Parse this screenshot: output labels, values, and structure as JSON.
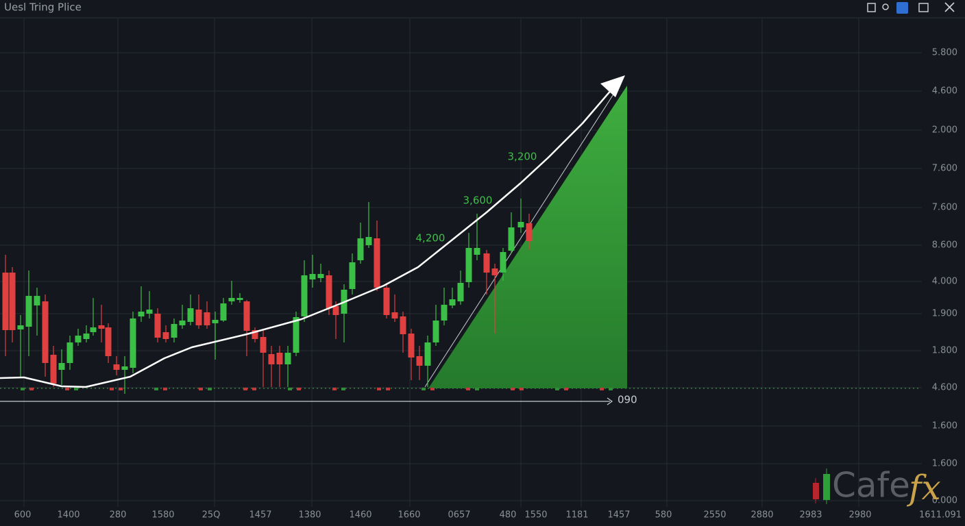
{
  "window": {
    "title": "Uesl Tring Plice"
  },
  "y_labels": [
    "5.800",
    "4.600",
    "2.000",
    "7.600",
    "7.600",
    "8.600",
    "4.000",
    "1.900",
    "1.800",
    "4.600",
    "1.600",
    "1.600",
    "0.000"
  ],
  "x_labels": [
    "600",
    "1400",
    "280",
    "1580",
    "25Q",
    "1457",
    "1380",
    "1460",
    "1660",
    "0657",
    "480",
    "1550",
    "1181",
    "1457",
    "580",
    "2550",
    "2880",
    "2983",
    "2980",
    "1611.091"
  ],
  "annotations": [
    "3,200",
    "3,600",
    "4,200"
  ],
  "end_label": "090",
  "watermark": {
    "brand": "Cafe",
    "suffix": "fx"
  }
}
